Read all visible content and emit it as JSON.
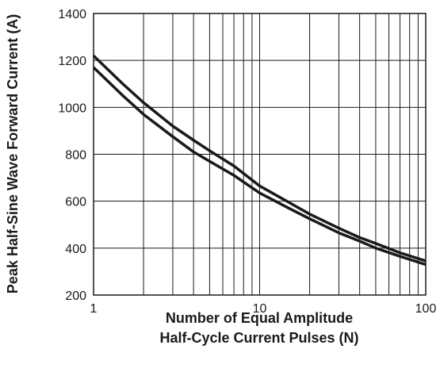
{
  "chart_data": {
    "type": "line",
    "title": "",
    "xlabel_lines": [
      "Number of Equal Amplitude",
      "Half-Cycle Current Pulses (N)"
    ],
    "ylabel": "Peak Half-Sine Wave Forward Current (A)",
    "x_scale": "log",
    "xlim": [
      1,
      100
    ],
    "ylim": [
      200,
      1400
    ],
    "x_ticks": [
      {
        "value": 1,
        "label": "1"
      },
      {
        "value": 10,
        "label": "10"
      },
      {
        "value": 100,
        "label": "100"
      }
    ],
    "y_ticks": [
      {
        "value": 200,
        "label": "200"
      },
      {
        "value": 400,
        "label": "400"
      },
      {
        "value": 600,
        "label": "600"
      },
      {
        "value": 800,
        "label": "800"
      },
      {
        "value": 1000,
        "label": "1000"
      },
      {
        "value": 1200,
        "label": "1200"
      },
      {
        "value": 1400,
        "label": "1400"
      }
    ],
    "grid": true,
    "series": [
      {
        "x": [
          1,
          1.5,
          2,
          3,
          4,
          5,
          7,
          10,
          15,
          20,
          30,
          40,
          50,
          70,
          100
        ],
        "y": [
          1220,
          1100,
          1020,
          920,
          860,
          815,
          750,
          665,
          595,
          545,
          485,
          445,
          420,
          380,
          345
        ]
      },
      {
        "x": [
          1,
          1.5,
          2,
          3,
          4,
          5,
          7,
          10,
          15,
          20,
          30,
          40,
          50,
          70,
          100
        ],
        "y": [
          1170,
          1050,
          970,
          875,
          810,
          770,
          710,
          635,
          570,
          525,
          465,
          430,
          400,
          365,
          330
        ]
      }
    ]
  }
}
